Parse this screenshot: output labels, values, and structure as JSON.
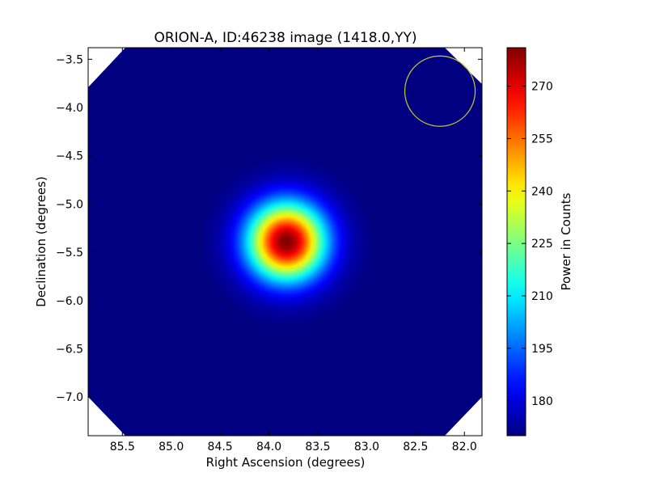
{
  "chart_data": {
    "type": "heatmap",
    "title": "ORION-A, ID:46238 image (1418.0,YY)",
    "xlabel": "Right Ascension (degrees)",
    "ylabel": "Declination (degrees)",
    "xlim": [
      85.85,
      81.82
    ],
    "ylim": [
      -7.4,
      -3.38
    ],
    "x_ticks": [
      85.5,
      85.0,
      84.5,
      84.0,
      83.5,
      83.0,
      82.5,
      82.0
    ],
    "x_tick_labels": [
      "85.5",
      "85.0",
      "84.5",
      "84.0",
      "83.5",
      "83.0",
      "82.5",
      "82.0"
    ],
    "y_ticks": [
      -3.5,
      -4.0,
      -4.5,
      -5.0,
      -5.5,
      -6.0,
      -6.5,
      -7.0
    ],
    "y_tick_labels": [
      "−3.5",
      "−4.0",
      "−4.5",
      "−5.0",
      "−5.5",
      "−6.0",
      "−6.5",
      "−7.0"
    ],
    "colormap": "jet",
    "grid": false,
    "source_peak": {
      "ra": 83.82,
      "dec": -5.39,
      "value": 281,
      "width_deg": 0.5
    },
    "background_level": 170,
    "beam_circle": {
      "ra": 82.25,
      "dec": -3.83,
      "radius_deg": 0.36,
      "color": "#c8c832"
    },
    "colorbar": {
      "label": "Power in Counts",
      "min": 170,
      "max": 281,
      "ticks": [
        180,
        195,
        210,
        225,
        240,
        255,
        270
      ],
      "tick_labels": [
        "180",
        "195",
        "210",
        "225",
        "240",
        "255",
        "270"
      ]
    }
  }
}
